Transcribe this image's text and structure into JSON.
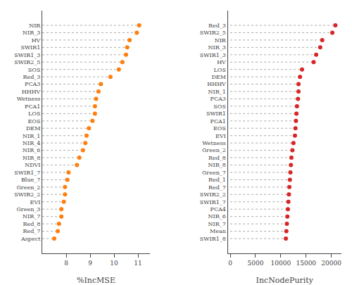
{
  "chart_data": [
    {
      "type": "dot",
      "orientation": "horizontal",
      "categories": [
        "NIR",
        "NIR_3",
        "HV",
        "SWIR1",
        "SWIR1_3",
        "SWIR2_5",
        "SOS",
        "Red_3",
        "PCA3",
        "HHHV",
        "Wetness",
        "PCA1",
        "LOS",
        "EOS",
        "DEM",
        "NIR_1",
        "NIR_4",
        "NIR_6",
        "NIR_8",
        "NDVI",
        "SWIR1_7",
        "Blue_7",
        "Green_2",
        "SWIR2_2",
        "EVI",
        "Green_3",
        "NIR_7",
        "Red_8",
        "Red_7",
        "Aspect"
      ],
      "values": [
        11.05,
        10.95,
        10.65,
        10.55,
        10.5,
        10.35,
        10.2,
        9.85,
        9.45,
        9.35,
        9.25,
        9.2,
        9.2,
        9.1,
        8.95,
        8.85,
        8.8,
        8.7,
        8.55,
        8.45,
        8.1,
        8.05,
        7.95,
        7.95,
        7.9,
        7.8,
        7.8,
        7.7,
        7.65,
        7.5
      ],
      "line_start": 7.0,
      "xlabel": "%IncMSE",
      "xlim": [
        7.0,
        11.5
      ],
      "xticks": [
        8,
        9,
        10,
        11
      ],
      "grid": false,
      "marker": "circle",
      "line_style": "dotted"
    },
    {
      "type": "dot",
      "orientation": "horizontal",
      "categories": [
        "Red_3",
        "SWIR2_5",
        "NIR",
        "NIR_3",
        "SWIR1_3",
        "HV",
        "LOS",
        "DEM",
        "HHHV",
        "NIR_1",
        "PCA3",
        "SOS",
        "SWIR1",
        "PCA1",
        "EOS",
        "EVI",
        "Wetness",
        "Green_2",
        "Red_8",
        "NIR_8",
        "Green_7",
        "Red_1",
        "Red_7",
        "SWIR2_2",
        "SWIR1_7",
        "PCA4",
        "NIR_6",
        "NIR_7",
        "Mean",
        "SWIR1_8"
      ],
      "values": [
        20800,
        20200,
        18200,
        17800,
        17000,
        16500,
        14200,
        13800,
        13500,
        13500,
        13400,
        13200,
        13100,
        13000,
        12900,
        12800,
        12500,
        12300,
        12100,
        12000,
        11900,
        11800,
        11700,
        11600,
        11500,
        11400,
        11300,
        11200,
        11100,
        11000
      ],
      "line_start": 0,
      "xlabel": "IncNodePurity",
      "xlim": [
        -500,
        22000
      ],
      "xticks": [
        0,
        5000,
        10000,
        15000,
        20000
      ],
      "grid": false,
      "marker": "circle",
      "line_style": "dotted"
    }
  ]
}
